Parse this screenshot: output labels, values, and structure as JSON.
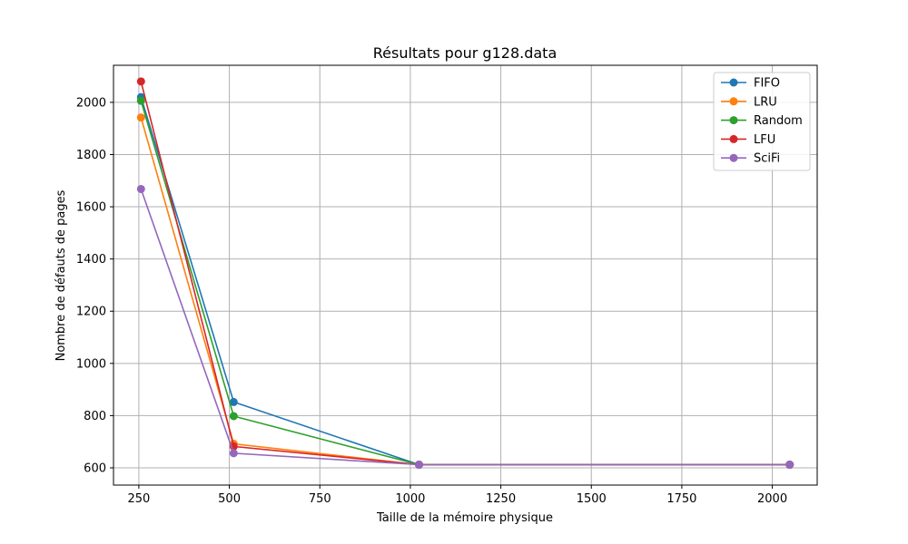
{
  "chart_data": {
    "type": "line",
    "title": "Résultats pour g128.data",
    "xlabel": "Taille de la mémoire physique",
    "ylabel": "Nombre de défauts de pages",
    "x": [
      256,
      512,
      1024,
      2048
    ],
    "xlim": [
      180,
      2124
    ],
    "ylim": [
      534,
      2142
    ],
    "xticks": [
      250,
      500,
      750,
      1000,
      1250,
      1500,
      1750,
      2000
    ],
    "yticks": [
      600,
      800,
      1000,
      1200,
      1400,
      1600,
      1800,
      2000
    ],
    "grid": true,
    "legend_position": "top-right",
    "series": [
      {
        "name": "FIFO",
        "color": "#1f77b4",
        "values": [
          2020,
          852,
          612,
          612
        ]
      },
      {
        "name": "LRU",
        "color": "#ff7f0e",
        "values": [
          1942,
          692,
          612,
          612
        ]
      },
      {
        "name": "Random",
        "color": "#2ca02c",
        "values": [
          2006,
          798,
          612,
          612
        ]
      },
      {
        "name": "LFU",
        "color": "#d62728",
        "values": [
          2080,
          682,
          612,
          612
        ]
      },
      {
        "name": "SciFi",
        "color": "#9467bd",
        "values": [
          1668,
          656,
          612,
          612
        ]
      }
    ]
  }
}
